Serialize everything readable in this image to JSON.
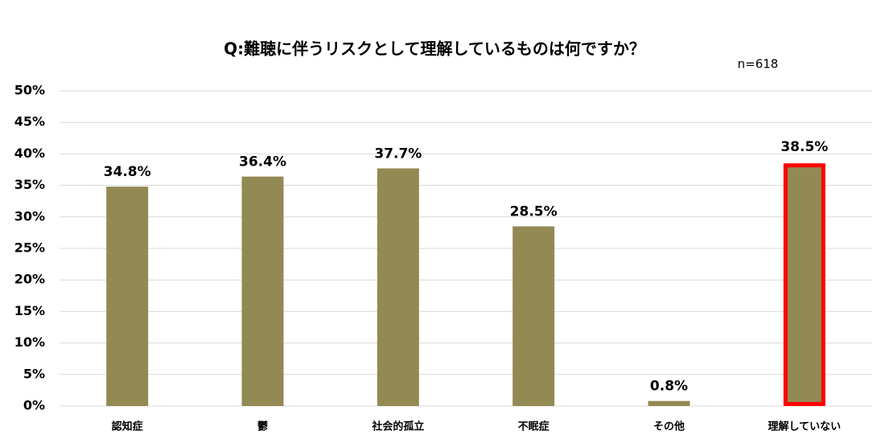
{
  "chart_data": {
    "type": "bar",
    "title": "Q:難聴に伴うリスクとして理解しているものは何ですか？",
    "subtitle": "n=618",
    "categories": [
      "認知症",
      "鬱",
      "社会的孤立",
      "不眠症",
      "その他",
      "理解していない"
    ],
    "values": [
      34.8,
      36.4,
      37.7,
      28.5,
      0.8,
      38.5
    ],
    "value_labels": [
      "34.8%",
      "36.4%",
      "37.7%",
      "28.5%",
      "0.8%",
      "38.5%"
    ],
    "color": "#938953",
    "highlight": {
      "index": 5,
      "color": "#ff0000"
    },
    "ylim": [
      0,
      50
    ],
    "yticks": [
      {
        "value": 0,
        "label": "0%"
      },
      {
        "value": 5,
        "label": "5%"
      },
      {
        "value": 10,
        "label": "10%"
      },
      {
        "value": 15,
        "label": "15%"
      },
      {
        "value": 20,
        "label": "20%"
      },
      {
        "value": 25,
        "label": "25%"
      },
      {
        "value": 30,
        "label": "30%"
      },
      {
        "value": 35,
        "label": "35%"
      },
      {
        "value": 40,
        "label": "40%"
      },
      {
        "value": 45,
        "label": "45%"
      },
      {
        "value": 50,
        "label": "50%"
      }
    ],
    "grid": true
  }
}
